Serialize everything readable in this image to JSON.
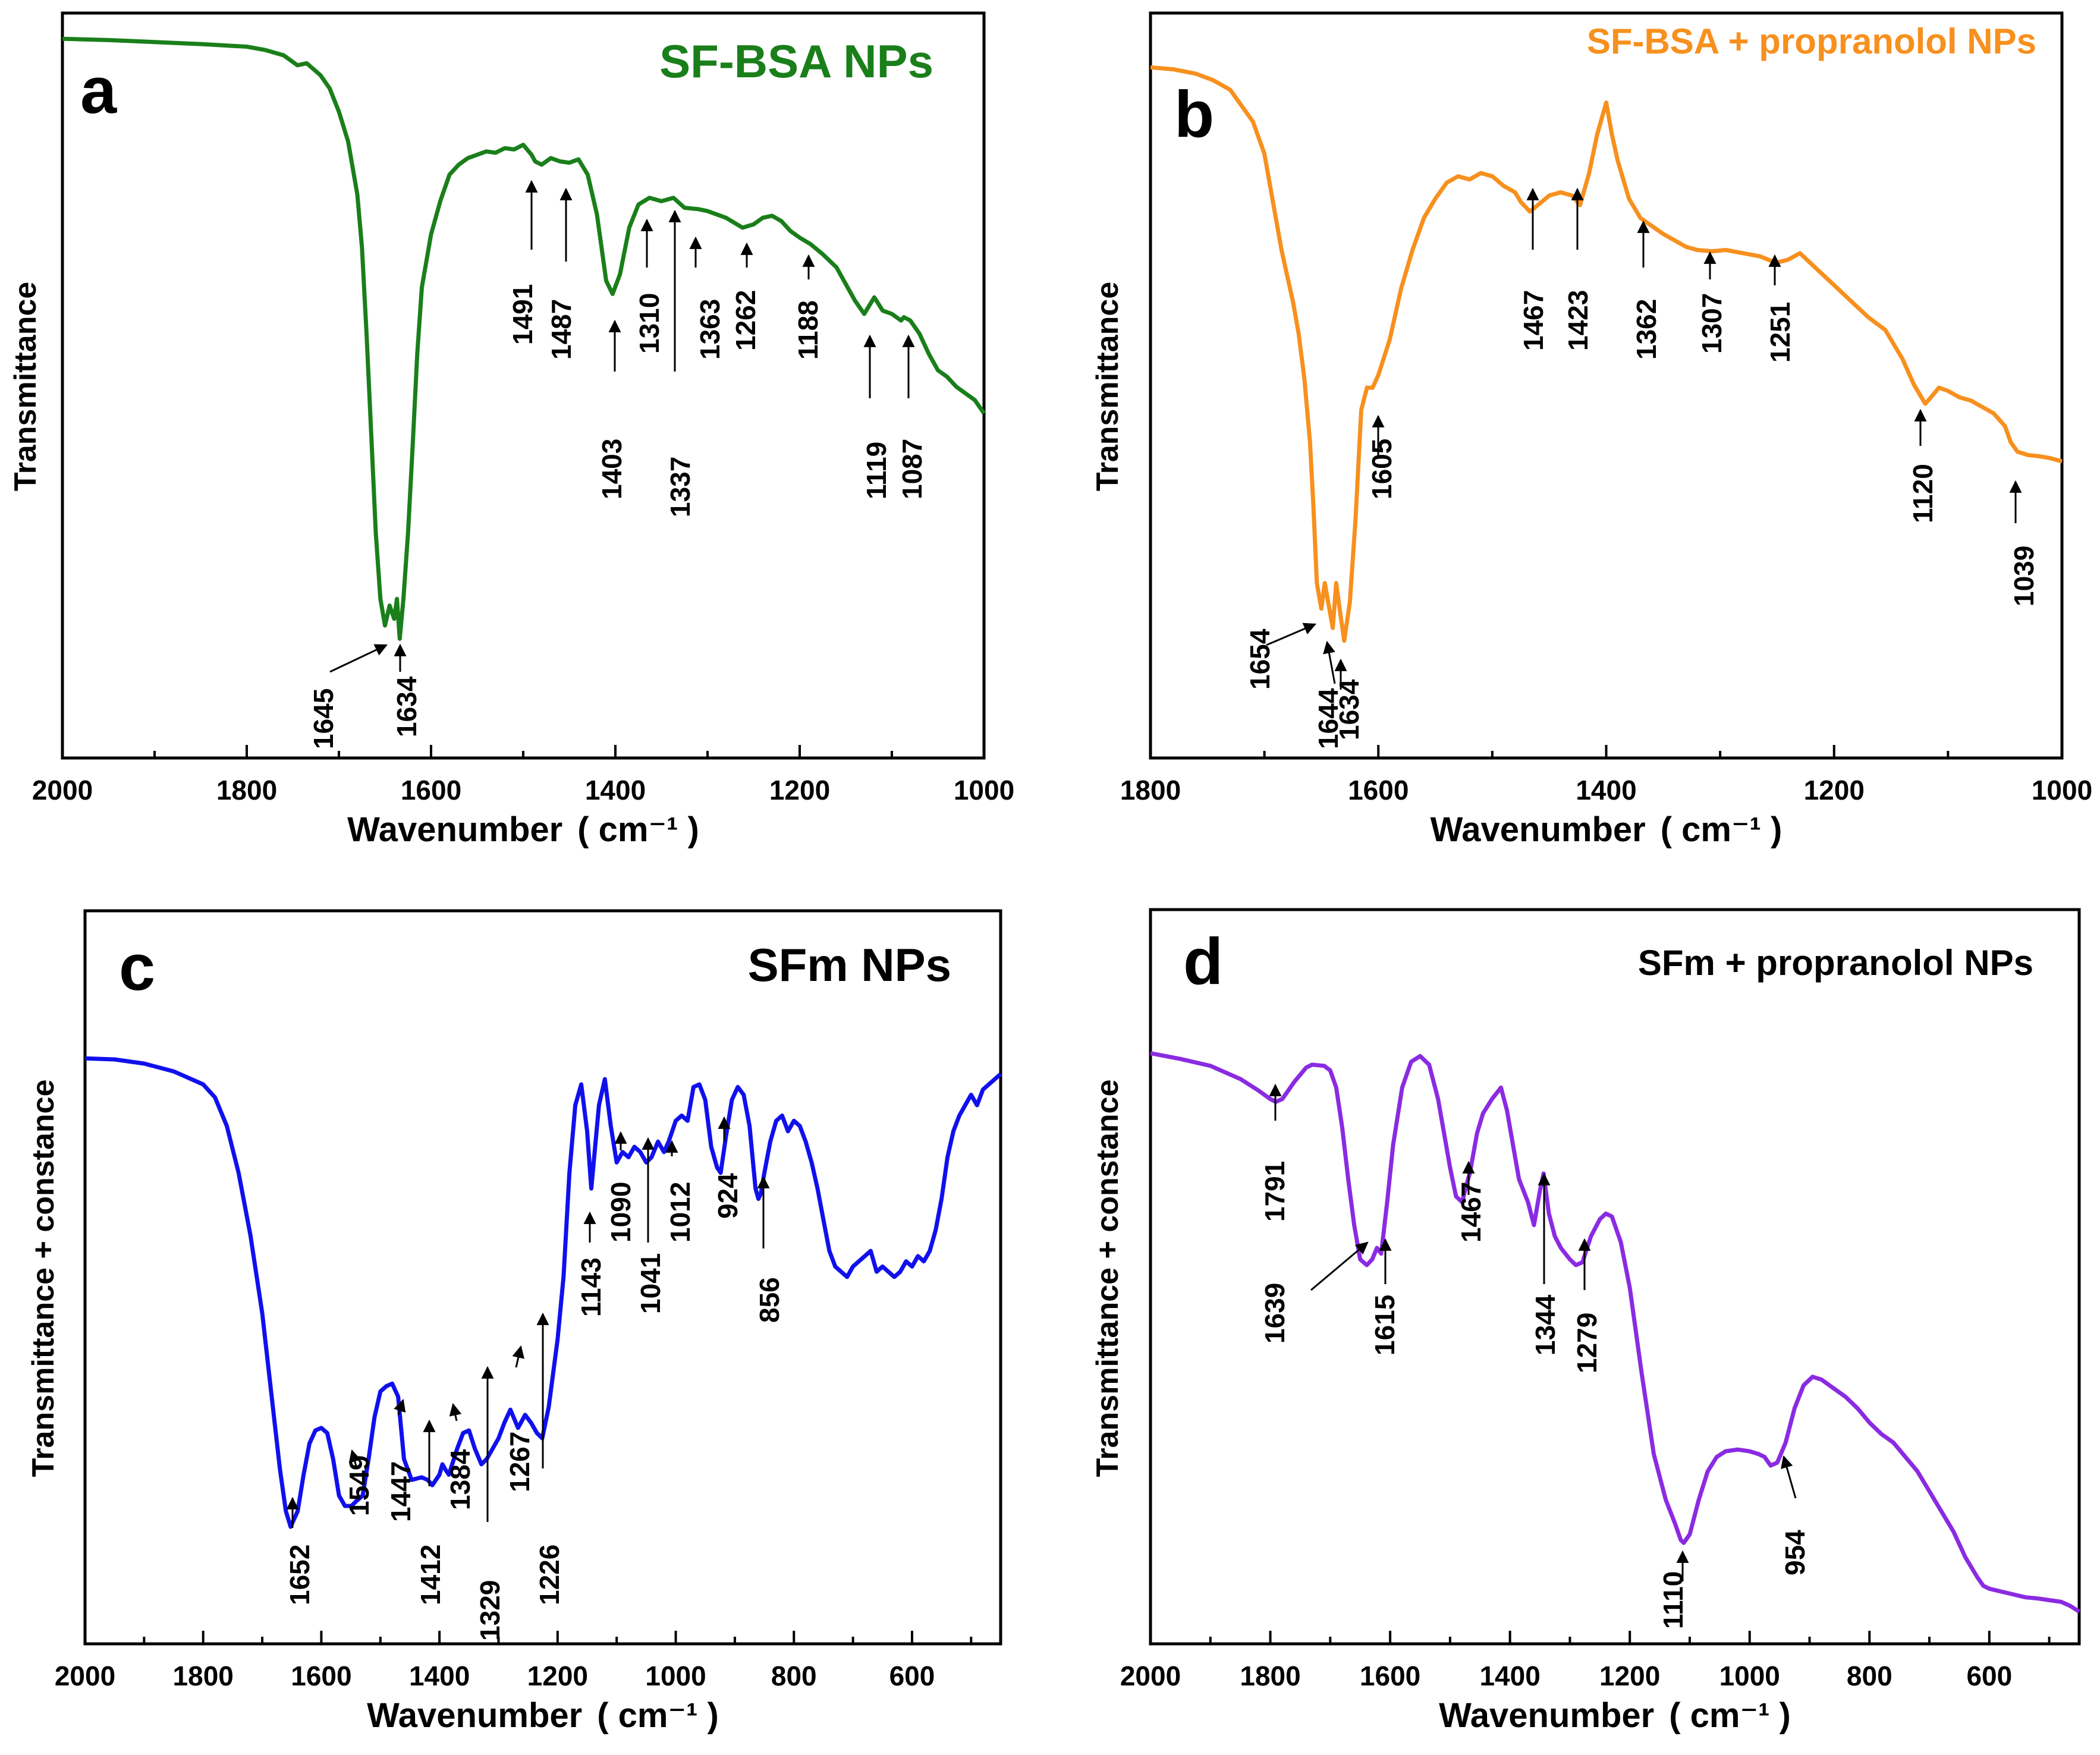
{
  "figure": {
    "description_panels": [
      "a",
      "b",
      "c",
      "d"
    ]
  },
  "chart_data": [
    {
      "type": "line",
      "panel_letter": "a",
      "title": "SF-BSA NPs",
      "xlabel": "Wavenumber",
      "xunit": "( cm⁻¹ )",
      "ylabel": "Transmittance",
      "xlim": [
        2000,
        1000
      ],
      "x_ticks": [
        2000,
        1800,
        1600,
        1400,
        1200,
        1000
      ],
      "ylim": [
        0,
        100
      ],
      "y_ticks": [],
      "color": "#1a7f1a",
      "series": [
        {
          "name": "SF-BSA NPs",
          "x": [
            2000,
            1950,
            1900,
            1850,
            1800,
            1780,
            1760,
            1745,
            1735,
            1720,
            1710,
            1700,
            1690,
            1680,
            1675,
            1670,
            1665,
            1660,
            1655,
            1650,
            1645,
            1640,
            1637,
            1634,
            1630,
            1625,
            1620,
            1615,
            1610,
            1600,
            1590,
            1580,
            1570,
            1560,
            1550,
            1540,
            1530,
            1520,
            1510,
            1500,
            1491,
            1487,
            1480,
            1470,
            1460,
            1450,
            1440,
            1430,
            1420,
            1410,
            1403,
            1395,
            1385,
            1375,
            1363,
            1350,
            1337,
            1325,
            1310,
            1300,
            1280,
            1262,
            1250,
            1240,
            1230,
            1220,
            1210,
            1200,
            1188,
            1175,
            1160,
            1150,
            1140,
            1130,
            1119,
            1110,
            1100,
            1090,
            1087,
            1080,
            1070,
            1060,
            1050,
            1040,
            1030,
            1020,
            1010,
            1000
          ],
          "y": [
            99.5,
            99.3,
            99.0,
            98.7,
            98.3,
            97.8,
            97.0,
            95.5,
            95.8,
            94.0,
            92.0,
            88.5,
            84.0,
            76.0,
            68.0,
            55.0,
            40.0,
            25.0,
            15.0,
            11.0,
            14.0,
            12.0,
            15.0,
            9.0,
            15.0,
            25.0,
            38.0,
            52.0,
            62.0,
            70.0,
            75.0,
            79.0,
            80.5,
            81.5,
            82.0,
            82.5,
            82.3,
            83.0,
            82.8,
            83.5,
            82.0,
            81.0,
            80.5,
            81.5,
            81.0,
            80.8,
            81.3,
            79.0,
            73.0,
            63.0,
            61.0,
            64.0,
            71.0,
            74.5,
            75.5,
            75.0,
            75.5,
            74.0,
            73.8,
            73.5,
            72.5,
            71.0,
            71.5,
            72.5,
            72.8,
            72.0,
            70.5,
            69.5,
            68.5,
            67.0,
            65.0,
            62.5,
            60.0,
            58.0,
            60.5,
            58.5,
            58.0,
            57.0,
            57.5,
            57.0,
            55.0,
            52.0,
            49.5,
            48.5,
            47.0,
            46.0,
            45.0,
            43.0
          ]
        }
      ],
      "annotations": [
        "1645",
        "1634",
        "1491",
        "1487",
        "1403",
        "1310",
        "1337",
        "1363",
        "1262",
        "1188",
        "1119",
        "1087"
      ]
    },
    {
      "type": "line",
      "panel_letter": "b",
      "title": "SF-BSA + propranolol NPs",
      "xlabel": "Wavenumber",
      "xunit": "( cm⁻¹ )",
      "ylabel": "Transmittance",
      "xlim": [
        1800,
        1000
      ],
      "x_ticks": [
        1800,
        1600,
        1400,
        1200,
        1000
      ],
      "ylim": [
        0,
        100
      ],
      "y_ticks": [],
      "color": "#f7901e",
      "series": [
        {
          "name": "SF-BSA + propranolol NPs",
          "x": [
            1800,
            1780,
            1760,
            1745,
            1730,
            1720,
            1710,
            1700,
            1695,
            1690,
            1685,
            1680,
            1675,
            1670,
            1665,
            1660,
            1657,
            1654,
            1650,
            1647,
            1644,
            1640,
            1637,
            1634,
            1630,
            1625,
            1620,
            1615,
            1610,
            1605,
            1600,
            1590,
            1580,
            1570,
            1560,
            1550,
            1540,
            1530,
            1520,
            1510,
            1500,
            1490,
            1480,
            1475,
            1467,
            1460,
            1450,
            1440,
            1430,
            1423,
            1415,
            1408,
            1400,
            1395,
            1390,
            1385,
            1380,
            1370,
            1362,
            1350,
            1340,
            1330,
            1320,
            1307,
            1295,
            1280,
            1265,
            1251,
            1240,
            1230,
            1215,
            1200,
            1185,
            1170,
            1155,
            1140,
            1130,
            1120,
            1115,
            1108,
            1100,
            1090,
            1080,
            1070,
            1060,
            1050,
            1045,
            1039,
            1030,
            1020,
            1010,
            1000
          ],
          "y": [
            98.5,
            98.2,
            97.5,
            96.5,
            95.0,
            92.5,
            90.0,
            85.0,
            80.0,
            75.0,
            70.0,
            66.0,
            62.0,
            57.0,
            50.0,
            40.0,
            30.0,
            18.0,
            14.0,
            18.0,
            15.0,
            11.0,
            18.0,
            14.0,
            9.0,
            15.0,
            28.0,
            45.0,
            48.5,
            48.5,
            50.5,
            56.0,
            64.0,
            70.0,
            75.0,
            78.0,
            80.5,
            81.5,
            81.0,
            82.0,
            81.5,
            80.0,
            79.0,
            77.5,
            76.0,
            77.0,
            78.5,
            79.0,
            78.5,
            77.0,
            82.0,
            88.0,
            93.0,
            88.0,
            84.0,
            81.0,
            78.0,
            75.0,
            74.0,
            72.5,
            71.5,
            70.5,
            70.0,
            69.8,
            70.0,
            69.5,
            69.0,
            68.0,
            68.5,
            69.5,
            67.0,
            64.5,
            62.0,
            59.5,
            57.5,
            53.0,
            49.0,
            46.0,
            47.0,
            48.5,
            48.0,
            47.0,
            46.5,
            45.5,
            44.5,
            42.5,
            40.0,
            38.5,
            38.0,
            37.8,
            37.5,
            37.0
          ]
        }
      ],
      "annotations": [
        "1654",
        "1644",
        "1634",
        "1605",
        "1467",
        "1423",
        "1362",
        "1307",
        "1251",
        "1120",
        "1039"
      ]
    },
    {
      "type": "line",
      "panel_letter": "c",
      "title": "SFm NPs",
      "xlabel": "Wavenumber",
      "xunit": "( cm⁻¹ )",
      "ylabel": "Transmittance + constance",
      "xlim": [
        2000,
        450
      ],
      "x_ticks": [
        2000,
        1800,
        1600,
        1400,
        1200,
        1000,
        800,
        600
      ],
      "ylim": [
        0,
        100
      ],
      "y_ticks": [],
      "color": "#1010ee",
      "series": [
        {
          "name": "SFm NPs",
          "x": [
            2000,
            1950,
            1900,
            1850,
            1800,
            1780,
            1760,
            1740,
            1720,
            1700,
            1690,
            1680,
            1670,
            1660,
            1652,
            1640,
            1630,
            1620,
            1610,
            1600,
            1590,
            1580,
            1570,
            1560,
            1549,
            1540,
            1530,
            1520,
            1510,
            1500,
            1490,
            1480,
            1470,
            1460,
            1447,
            1430,
            1420,
            1412,
            1400,
            1395,
            1390,
            1384,
            1370,
            1360,
            1350,
            1340,
            1329,
            1320,
            1300,
            1290,
            1280,
            1267,
            1255,
            1245,
            1235,
            1226,
            1215,
            1200,
            1190,
            1180,
            1170,
            1160,
            1150,
            1143,
            1130,
            1120,
            1110,
            1100,
            1090,
            1080,
            1070,
            1060,
            1050,
            1041,
            1030,
            1020,
            1012,
            1000,
            990,
            980,
            970,
            960,
            950,
            940,
            930,
            924,
            915,
            905,
            895,
            885,
            875,
            865,
            860,
            856,
            850,
            840,
            830,
            820,
            810,
            800,
            790,
            780,
            770,
            760,
            750,
            740,
            730,
            720,
            710,
            700,
            690,
            680,
            670,
            660,
            650,
            640,
            630,
            620,
            610,
            600,
            590,
            580,
            570,
            560,
            550,
            540,
            530,
            520,
            510,
            500,
            490,
            480,
            470,
            460,
            450
          ],
          "y": [
            97.0,
            96.8,
            96.0,
            94.5,
            92.0,
            89.5,
            84.0,
            75.0,
            63.0,
            48.0,
            38.0,
            28.0,
            18.0,
            10.0,
            7.0,
            10.0,
            17.0,
            23.0,
            25.5,
            26.0,
            25.0,
            20.0,
            13.0,
            11.0,
            11.0,
            12.0,
            13.0,
            20.0,
            28.0,
            33.0,
            34.0,
            34.5,
            32.0,
            20.0,
            16.0,
            16.5,
            16.0,
            15.0,
            17.0,
            19.0,
            18.0,
            17.0,
            22.0,
            25.0,
            25.5,
            22.0,
            19.0,
            20.0,
            24.0,
            27.0,
            29.5,
            26.0,
            28.5,
            27.0,
            25.0,
            24.0,
            30.0,
            43.0,
            55.0,
            75.0,
            88.0,
            92.0,
            83.0,
            72.0,
            88.0,
            93.0,
            84.0,
            77.0,
            79.0,
            78.0,
            80.0,
            79.0,
            77.0,
            78.0,
            81.0,
            79.0,
            81.0,
            85.0,
            86.0,
            85.0,
            91.5,
            92.0,
            89.0,
            80.0,
            76.0,
            75.0,
            82.0,
            89.0,
            91.5,
            90.0,
            84.0,
            72.0,
            70.0,
            71.0,
            75.0,
            81.0,
            85.0,
            86.0,
            83.0,
            85.0,
            84.0,
            81.0,
            77.0,
            72.0,
            66.0,
            60.0,
            57.0,
            56.0,
            55.0,
            57.0,
            58.0,
            59.0,
            60.0,
            56.0,
            57.0,
            56.0,
            55.0,
            56.0,
            58.0,
            57.0,
            59.0,
            58.0,
            60.0,
            64.0,
            70.0,
            78.0,
            83.0,
            86.0,
            88.0,
            90.0,
            88.0,
            91.0,
            92.0,
            93.0,
            94.0
          ]
        }
      ],
      "annotations": [
        "1652",
        "1549",
        "1447",
        "1412",
        "1384",
        "1329",
        "1267",
        "1226",
        "1143",
        "1090",
        "1041",
        "1012",
        "924",
        "856"
      ]
    },
    {
      "type": "line",
      "panel_letter": "d",
      "title": "SFm + propranolol NPs",
      "xlabel": "Wavenumber",
      "xunit": "( cm⁻¹ )",
      "ylabel": "Transmittance + constance",
      "xlim": [
        2000,
        450
      ],
      "x_ticks": [
        2000,
        1800,
        1600,
        1400,
        1200,
        1000,
        800,
        600
      ],
      "ylim": [
        0,
        100
      ],
      "y_ticks": [],
      "color": "#8a2be2",
      "series": [
        {
          "name": "SFm + propranolol NPs",
          "x": [
            2000,
            1950,
            1900,
            1850,
            1820,
            1800,
            1791,
            1780,
            1760,
            1740,
            1730,
            1710,
            1700,
            1690,
            1680,
            1670,
            1660,
            1650,
            1639,
            1630,
            1622,
            1615,
            1605,
            1595,
            1580,
            1565,
            1550,
            1535,
            1520,
            1510,
            1500,
            1490,
            1480,
            1470,
            1467,
            1455,
            1445,
            1430,
            1415,
            1405,
            1395,
            1385,
            1370,
            1360,
            1350,
            1344,
            1335,
            1325,
            1315,
            1300,
            1290,
            1279,
            1265,
            1250,
            1240,
            1230,
            1215,
            1200,
            1180,
            1160,
            1140,
            1125,
            1115,
            1110,
            1100,
            1085,
            1070,
            1055,
            1040,
            1020,
            1000,
            985,
            975,
            965,
            954,
            940,
            925,
            910,
            895,
            880,
            860,
            840,
            820,
            800,
            780,
            760,
            740,
            720,
            700,
            680,
            660,
            640,
            620,
            610,
            600,
            580,
            560,
            540,
            520,
            500,
            480,
            465,
            450
          ],
          "y": [
            98.0,
            97.0,
            95.8,
            93.5,
            91.5,
            90.0,
            89.5,
            90.0,
            93.0,
            95.5,
            96.0,
            95.8,
            95.0,
            92.0,
            85.0,
            76.0,
            68.0,
            62.0,
            61.0,
            62.0,
            64.0,
            63.0,
            72.0,
            82.0,
            92.0,
            96.5,
            97.5,
            96.0,
            90.0,
            84.0,
            78.0,
            73.0,
            72.0,
            76.0,
            77.0,
            84.0,
            87.5,
            90.0,
            92.0,
            88.0,
            82.0,
            76.0,
            72.0,
            68.0,
            74.0,
            77.0,
            70.0,
            66.0,
            64.0,
            62.0,
            61.0,
            61.5,
            66.0,
            69.0,
            70.0,
            69.5,
            65.0,
            57.0,
            42.0,
            28.0,
            20.0,
            16.0,
            13.0,
            12.5,
            14.0,
            20.0,
            25.0,
            27.5,
            28.5,
            28.8,
            28.5,
            28.0,
            27.5,
            26.0,
            26.5,
            30.0,
            36.0,
            40.0,
            41.5,
            41.0,
            39.5,
            38.0,
            36.0,
            33.5,
            31.5,
            30.0,
            27.5,
            25.0,
            21.5,
            18.0,
            14.5,
            10.0,
            6.5,
            5.0,
            4.5,
            4.0,
            3.5,
            3.0,
            2.8,
            2.5,
            2.2,
            1.5,
            0.5
          ]
        }
      ],
      "annotations": [
        "1791",
        "1639",
        "1615",
        "1467",
        "1344",
        "1279",
        "1110",
        "954"
      ]
    }
  ]
}
